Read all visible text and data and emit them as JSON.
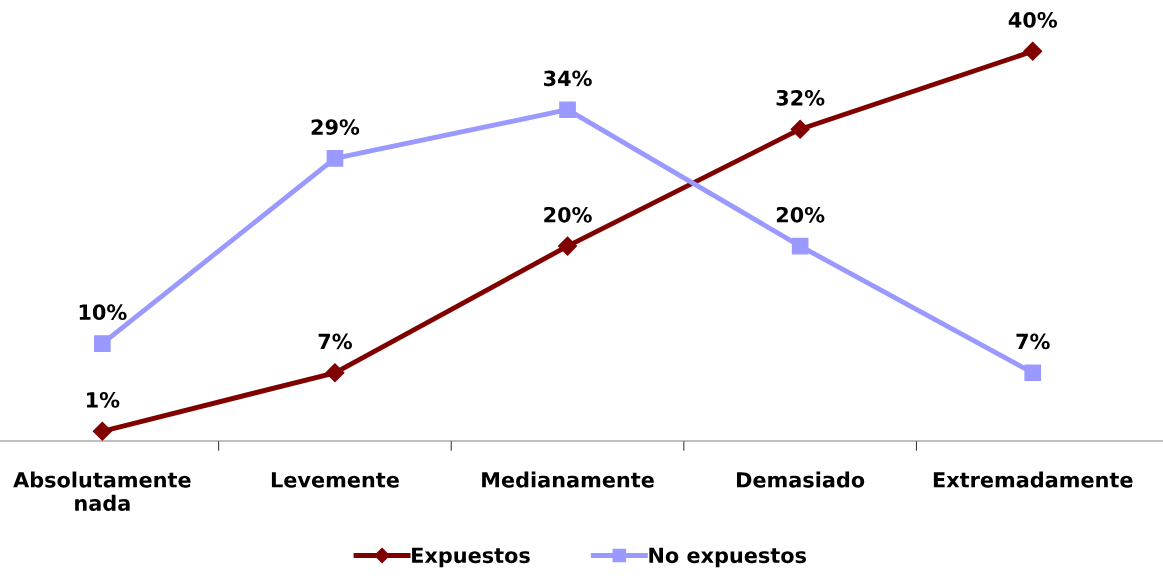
{
  "chart_data": {
    "type": "line",
    "categories": [
      "Absolutamente\nnada",
      "Levemente",
      "Medianamente",
      "Demasiado",
      "Extremadamente"
    ],
    "series": [
      {
        "name": "Expuestos",
        "color": "#800000",
        "marker": "diamond",
        "values": [
          1,
          7,
          20,
          32,
          40
        ],
        "value_labels": [
          "1%",
          "7%",
          "20%",
          "32%",
          "40%"
        ]
      },
      {
        "name": "No expuestos",
        "color": "#9999ff",
        "marker": "square",
        "values": [
          10,
          29,
          34,
          20,
          7
        ],
        "value_labels": [
          "10%",
          "29%",
          "34%",
          "20%",
          "7%"
        ]
      }
    ],
    "tick_labels": "x",
    "legend": "bottom",
    "grid": false
  }
}
